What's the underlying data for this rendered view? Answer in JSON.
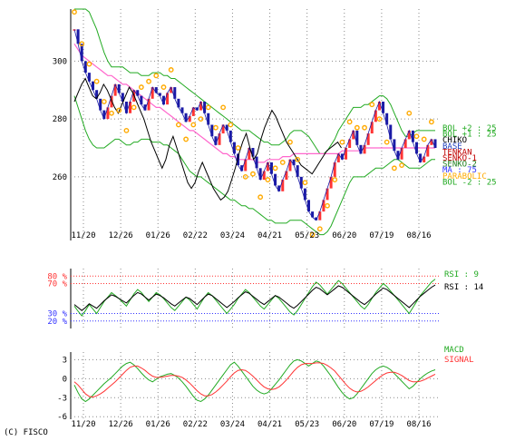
{
  "copyright": "(C) FISCO",
  "chart_data": [
    {
      "type": "line",
      "panel": "price",
      "x_labels": [
        "11/20",
        "12/26",
        "01/26",
        "02/22",
        "03/24",
        "04/21",
        "05/23",
        "06/20",
        "07/19",
        "08/16"
      ],
      "y_ticks": [
        260,
        280,
        300
      ],
      "ylim": [
        238,
        318
      ],
      "grid": true,
      "legend": [
        {
          "text": "BOL +2 : 25",
          "color": "#22aa22"
        },
        {
          "text": "BOL +1 : 25",
          "color": "#22aa22"
        },
        {
          "text": "CHIKO",
          "color": "#000000"
        },
        {
          "text": "BASE",
          "color": "#1f3fbf"
        },
        {
          "text": "TENKAN",
          "color": "#c00000"
        },
        {
          "text": "SENKO-1",
          "color": "#c00000"
        },
        {
          "text": "SENKO-2",
          "color": "#1f7f1f"
        },
        {
          "text": "MA : 75",
          "color": "#3333ff"
        },
        {
          "text": "PARABOLIC",
          "color": "#ffaa00"
        },
        {
          "text": "BOL -2 : 25",
          "color": "#22aa22"
        }
      ],
      "close": [
        311,
        306,
        300,
        296,
        293,
        290,
        287,
        283,
        280,
        284,
        288,
        292,
        289,
        286,
        282,
        286,
        290,
        288,
        285,
        283,
        287,
        291,
        289,
        288,
        285,
        289,
        291,
        287,
        284,
        282,
        279,
        281,
        284,
        283,
        286,
        282,
        278,
        274,
        271,
        275,
        278,
        276,
        272,
        268,
        264,
        262,
        266,
        270,
        267,
        263,
        259,
        262,
        265,
        261,
        257,
        255,
        259,
        262,
        266,
        264,
        260,
        256,
        252,
        248,
        246,
        245,
        248,
        252,
        256,
        260,
        265,
        268,
        266,
        270,
        273,
        276,
        271,
        268,
        271,
        275,
        279,
        283,
        286,
        282,
        278,
        273,
        269,
        266,
        270,
        273,
        276,
        272,
        268,
        265,
        267,
        271,
        273,
        270
      ],
      "ma75": [
        306,
        304,
        302,
        301,
        300,
        299,
        298,
        297,
        296,
        295,
        295,
        294,
        293,
        292,
        292,
        291,
        290,
        289,
        288,
        287,
        286,
        285,
        284,
        284,
        283,
        282,
        281,
        280,
        279,
        278,
        277,
        276,
        276,
        275,
        274,
        273,
        272,
        271,
        270,
        269,
        268,
        268,
        267,
        267,
        266,
        266,
        266,
        266,
        266,
        265,
        265,
        265,
        266,
        266,
        266,
        266,
        267,
        267,
        267,
        268,
        268,
        268,
        268,
        268,
        268,
        268,
        268,
        268,
        268,
        268,
        268,
        268,
        269,
        269,
        269,
        269,
        269,
        269,
        270,
        270,
        270,
        270,
        270,
        270,
        270,
        270,
        270,
        270,
        270,
        270,
        270,
        270,
        270,
        270,
        270,
        270,
        270,
        270
      ],
      "bol_upper": [
        318,
        318,
        318,
        318,
        317,
        314,
        311,
        307,
        303,
        300,
        298,
        298,
        298,
        298,
        297,
        296,
        296,
        296,
        295,
        295,
        295,
        296,
        296,
        296,
        295,
        295,
        294,
        294,
        293,
        292,
        291,
        290,
        289,
        288,
        287,
        286,
        285,
        284,
        283,
        282,
        281,
        280,
        279,
        278,
        277,
        276,
        276,
        276,
        275,
        274,
        273,
        272,
        272,
        271,
        271,
        271,
        272,
        273,
        275,
        276,
        276,
        276,
        275,
        274,
        272,
        270,
        268,
        268,
        269,
        271,
        273,
        276,
        278,
        280,
        282,
        284,
        284,
        284,
        285,
        285,
        286,
        287,
        288,
        288,
        287,
        285,
        282,
        279,
        276,
        274,
        274,
        275,
        276,
        276,
        276,
        276,
        276,
        276
      ],
      "bol_lower": [
        288,
        284,
        280,
        276,
        273,
        271,
        270,
        270,
        270,
        271,
        272,
        273,
        273,
        272,
        271,
        271,
        272,
        272,
        273,
        273,
        273,
        272,
        272,
        272,
        271,
        271,
        270,
        269,
        268,
        266,
        264,
        262,
        261,
        260,
        260,
        259,
        258,
        257,
        256,
        255,
        254,
        253,
        252,
        252,
        251,
        250,
        250,
        249,
        249,
        248,
        247,
        246,
        245,
        245,
        244,
        244,
        244,
        244,
        245,
        245,
        245,
        245,
        244,
        243,
        242,
        241,
        240,
        240,
        241,
        243,
        246,
        249,
        252,
        255,
        258,
        260,
        260,
        260,
        260,
        261,
        262,
        263,
        263,
        263,
        264,
        265,
        266,
        266,
        265,
        264,
        263,
        263,
        263,
        263,
        264,
        265,
        266,
        266
      ],
      "chiko": [
        286,
        289,
        292,
        294,
        291,
        288,
        287,
        289,
        292,
        290,
        287,
        284,
        282,
        285,
        288,
        291,
        289,
        286,
        283,
        280,
        276,
        272,
        269,
        266,
        263,
        266,
        271,
        274,
        270,
        266,
        262,
        258,
        256,
        258,
        262,
        265,
        262,
        259,
        256,
        254,
        252,
        253,
        255,
        259,
        263,
        268,
        272,
        275,
        270,
        266,
        268,
        273,
        277,
        280,
        283,
        281,
        278,
        275,
        272,
        270,
        268,
        266,
        264,
        263,
        262,
        261,
        263,
        265,
        267,
        269,
        270,
        271,
        272,
        270
      ]
    },
    {
      "type": "line",
      "panel": "rsi",
      "y_ticks": [
        {
          "label": "80 %",
          "value": 80,
          "color": "#ff3333"
        },
        {
          "label": "70 %",
          "value": 70,
          "color": "#ff3333"
        },
        {
          "label": "30 %",
          "value": 30,
          "color": "#3333ff"
        },
        {
          "label": "20 %",
          "value": 20,
          "color": "#3333ff"
        }
      ],
      "ylim": [
        10,
        90
      ],
      "series": [
        {
          "name": "RSI : 9",
          "color": "#22aa22",
          "values": [
            40,
            33,
            27,
            34,
            42,
            36,
            30,
            38,
            46,
            52,
            58,
            54,
            50,
            45,
            40,
            48,
            56,
            62,
            58,
            52,
            46,
            52,
            58,
            55,
            50,
            44,
            38,
            34,
            40,
            46,
            52,
            48,
            42,
            36,
            44,
            52,
            58,
            54,
            48,
            42,
            36,
            30,
            36,
            42,
            50,
            56,
            62,
            58,
            52,
            46,
            40,
            36,
            42,
            48,
            54,
            50,
            44,
            38,
            32,
            28,
            34,
            42,
            50,
            58,
            66,
            72,
            68,
            62,
            56,
            62,
            68,
            74,
            70,
            64,
            58,
            52,
            46,
            40,
            36,
            42,
            50,
            58,
            64,
            70,
            66,
            60,
            54,
            48,
            42,
            36,
            30,
            38,
            46,
            54,
            60,
            66,
            72,
            76
          ]
        },
        {
          "name": "RSI : 14",
          "color": "#000000",
          "values": [
            42,
            38,
            34,
            38,
            43,
            40,
            37,
            42,
            47,
            51,
            55,
            53,
            50,
            47,
            44,
            49,
            54,
            58,
            56,
            52,
            48,
            52,
            56,
            54,
            51,
            47,
            43,
            40,
            44,
            48,
            52,
            50,
            46,
            42,
            47,
            52,
            56,
            54,
            50,
            46,
            42,
            38,
            42,
            46,
            51,
            55,
            59,
            57,
            53,
            49,
            45,
            42,
            46,
            50,
            54,
            52,
            48,
            44,
            40,
            37,
            41,
            46,
            51,
            56,
            61,
            65,
            63,
            59,
            55,
            59,
            63,
            67,
            65,
            61,
            57,
            53,
            49,
            45,
            42,
            46,
            51,
            56,
            60,
            64,
            62,
            58,
            54,
            50,
            46,
            42,
            38,
            43,
            48,
            53,
            57,
            61,
            65,
            68
          ]
        }
      ]
    },
    {
      "type": "line",
      "panel": "macd",
      "y_ticks": [
        3,
        0,
        -3,
        -6
      ],
      "ylim": [
        -6.4,
        4.2
      ],
      "series": [
        {
          "name": "MACD",
          "color": "#22aa22",
          "values": [
            -1.0,
            -2.2,
            -3.2,
            -3.6,
            -3.2,
            -2.6,
            -2.0,
            -1.4,
            -0.8,
            -0.3,
            0.2,
            0.8,
            1.4,
            2.0,
            2.4,
            2.6,
            2.2,
            1.6,
            0.9,
            0.3,
            -0.2,
            -0.5,
            -0.1,
            0.3,
            0.5,
            0.7,
            0.8,
            0.5,
            0.1,
            -0.5,
            -1.2,
            -2.0,
            -2.8,
            -3.4,
            -3.6,
            -3.2,
            -2.6,
            -1.8,
            -1.0,
            -0.2,
            0.6,
            1.4,
            2.2,
            2.6,
            2.0,
            1.2,
            0.4,
            -0.4,
            -1.2,
            -1.8,
            -2.2,
            -2.4,
            -2.2,
            -1.6,
            -0.9,
            -0.2,
            0.6,
            1.4,
            2.2,
            2.8,
            3.0,
            2.8,
            2.4,
            2.0,
            2.4,
            2.8,
            2.6,
            2.0,
            1.2,
            0.4,
            -0.5,
            -1.4,
            -2.2,
            -2.8,
            -3.2,
            -3.0,
            -2.4,
            -1.6,
            -0.8,
            0.0,
            0.8,
            1.4,
            1.8,
            2.0,
            1.8,
            1.4,
            0.8,
            0.2,
            -0.4,
            -1.0,
            -1.6,
            -1.2,
            -0.6,
            0.0,
            0.5,
            0.9,
            1.2,
            1.4
          ]
        },
        {
          "name": "SIGNAL",
          "color": "#ff3333",
          "values": [
            -0.5,
            -1.0,
            -1.7,
            -2.4,
            -2.8,
            -2.9,
            -2.7,
            -2.4,
            -2.0,
            -1.5,
            -1.0,
            -0.5,
            0.1,
            0.7,
            1.3,
            1.8,
            2.0,
            2.0,
            1.7,
            1.3,
            0.8,
            0.4,
            0.2,
            0.2,
            0.3,
            0.4,
            0.5,
            0.5,
            0.4,
            0.2,
            -0.2,
            -0.7,
            -1.3,
            -1.9,
            -2.4,
            -2.7,
            -2.7,
            -2.5,
            -2.1,
            -1.6,
            -1.0,
            -0.4,
            0.3,
            0.9,
            1.3,
            1.4,
            1.3,
            0.9,
            0.4,
            -0.2,
            -0.8,
            -1.3,
            -1.6,
            -1.7,
            -1.6,
            -1.3,
            -0.8,
            -0.2,
            0.5,
            1.2,
            1.8,
            2.2,
            2.4,
            2.4,
            2.4,
            2.5,
            2.5,
            2.4,
            2.1,
            1.7,
            1.2,
            0.5,
            -0.2,
            -0.9,
            -1.5,
            -1.9,
            -2.1,
            -2.0,
            -1.7,
            -1.3,
            -0.8,
            -0.3,
            0.2,
            0.6,
            0.9,
            1.0,
            1.0,
            0.8,
            0.5,
            0.1,
            -0.3,
            -0.5,
            -0.5,
            -0.4,
            -0.2,
            0.1,
            0.4,
            0.7
          ]
        }
      ]
    }
  ]
}
